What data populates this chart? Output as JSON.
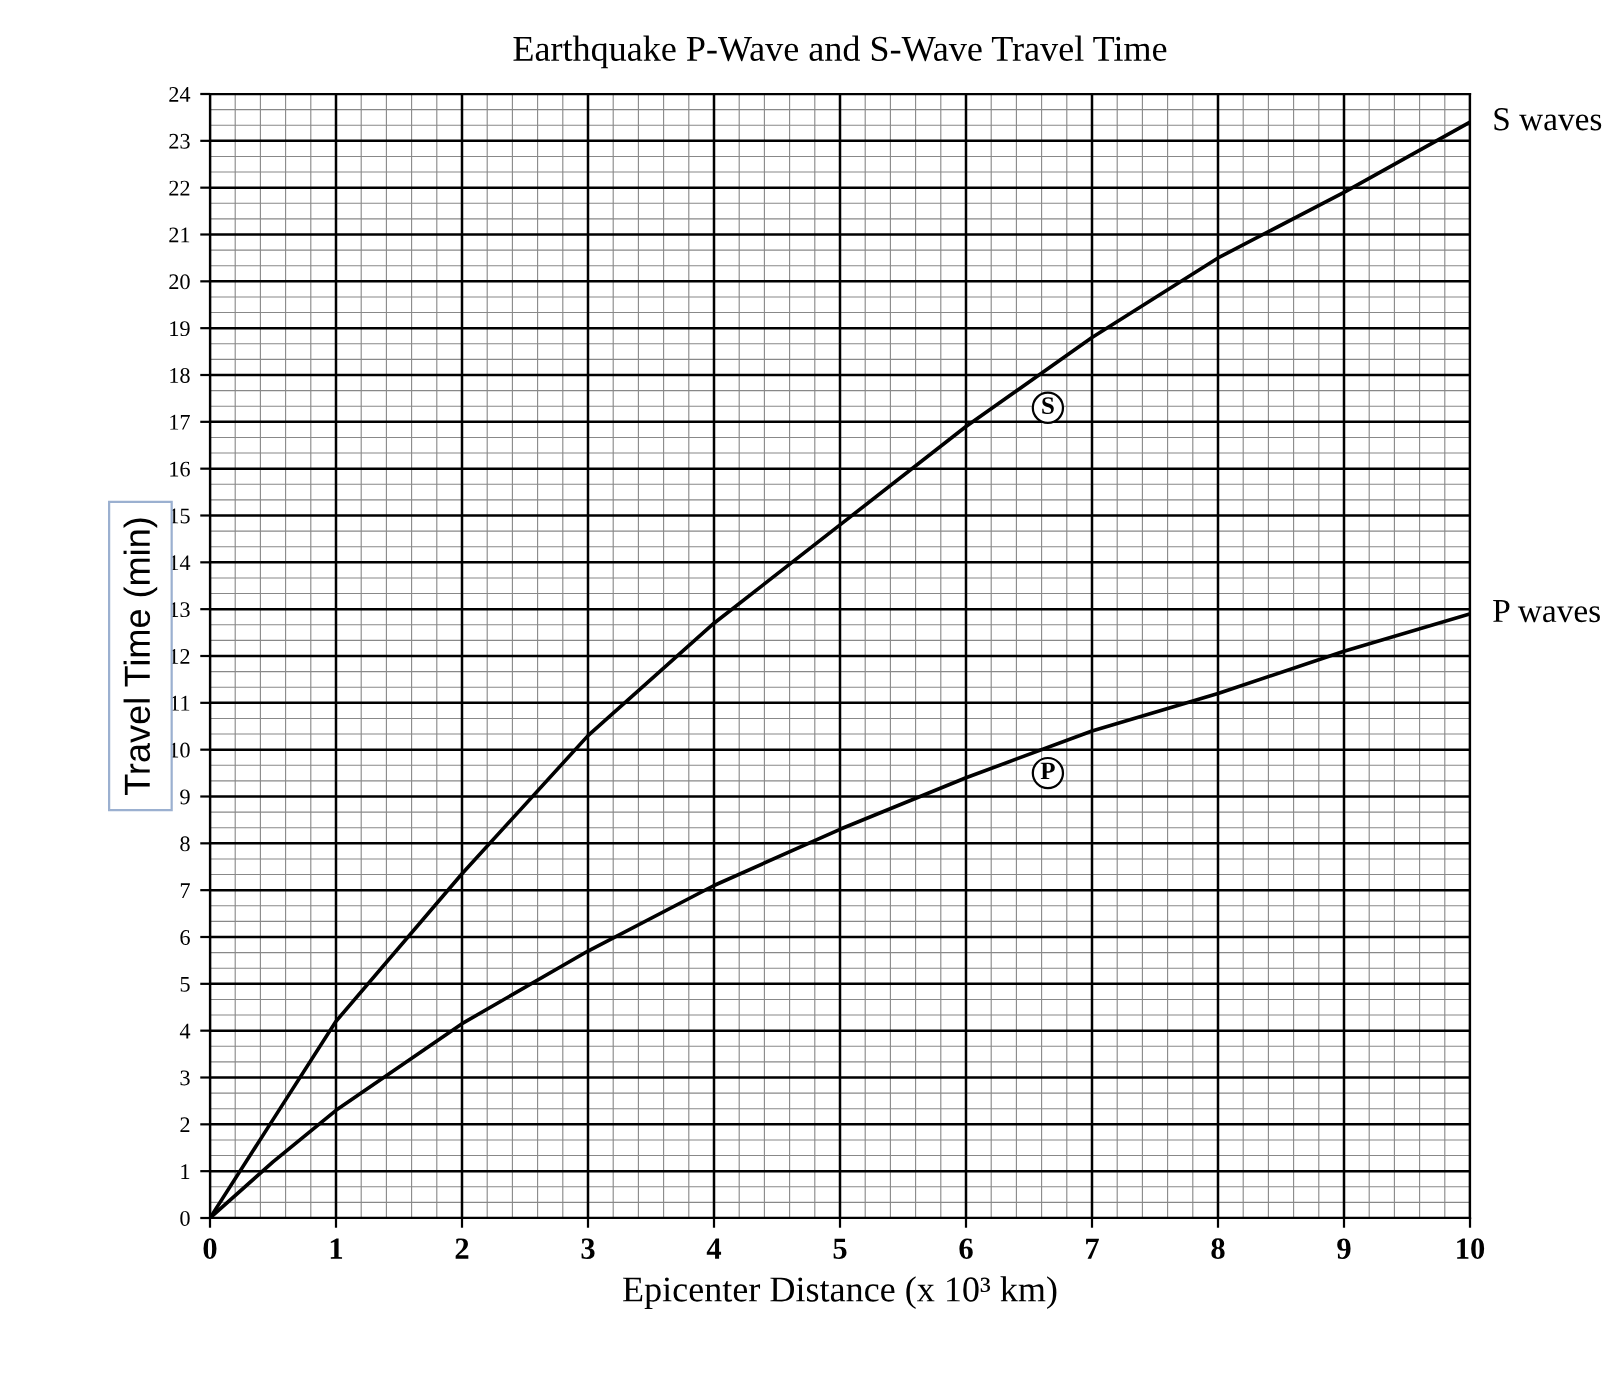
{
  "chart_data": {
    "type": "line",
    "title": "Earthquake P-Wave and S-Wave Travel Time",
    "xlabel": "Epicenter Distance (x 10³ km)",
    "ylabel": "Travel Time (min)",
    "x": [
      0,
      0.5,
      1,
      2,
      3,
      4,
      5,
      6,
      7,
      8,
      9,
      10
    ],
    "series": [
      {
        "name": "S waves",
        "color": "#000000",
        "values": [
          0,
          2.1,
          4.2,
          7.35,
          10.3,
          12.7,
          14.8,
          16.9,
          18.8,
          20.5,
          21.9,
          23.4
        ]
      },
      {
        "name": "P waves",
        "color": "#000000",
        "values": [
          0,
          1.2,
          2.3,
          4.15,
          5.7,
          7.1,
          8.3,
          9.4,
          10.4,
          11.2,
          12.1,
          12.9
        ]
      }
    ],
    "annotations": [
      {
        "text": "S",
        "x": 6.65,
        "y": 17.3
      },
      {
        "text": "P",
        "x": 6.65,
        "y": 9.5
      }
    ],
    "xlim": [
      0,
      10
    ],
    "ylim": [
      0,
      24
    ],
    "xticks": [
      0,
      1,
      2,
      3,
      4,
      5,
      6,
      7,
      8,
      9,
      10
    ],
    "yticks": [
      0,
      1,
      2,
      3,
      4,
      5,
      6,
      7,
      8,
      9,
      10,
      11,
      12,
      13,
      14,
      15,
      16,
      17,
      18,
      19,
      20,
      21,
      22,
      23,
      24
    ],
    "grid": true,
    "legend": false,
    "marker": "none",
    "line_style": "solid"
  }
}
